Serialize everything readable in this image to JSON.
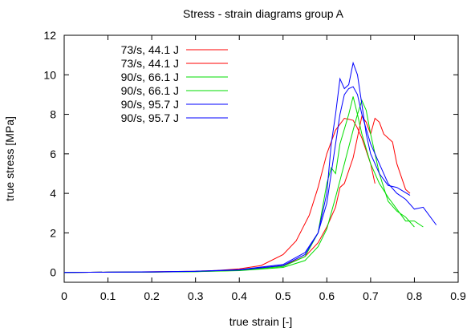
{
  "chart_data": {
    "type": "line",
    "title": "Stress - strain diagrams group A",
    "xlabel": "true strain [-]",
    "ylabel": "true stress [MPa]",
    "xlim": [
      0,
      0.9
    ],
    "ylim": [
      -0.5,
      12
    ],
    "xticks": [
      "0",
      "0.1",
      "0.2",
      "0.3",
      "0.4",
      "0.5",
      "0.6",
      "0.7",
      "0.8",
      "0.9"
    ],
    "yticks": [
      "0",
      "2",
      "4",
      "6",
      "8",
      "10",
      "12"
    ],
    "legend_position": "top-left",
    "grid": false,
    "series": [
      {
        "name": "73/s, 44.1 J",
        "color": "#ff0000",
        "x": [
          0,
          0.1,
          0.2,
          0.3,
          0.35,
          0.4,
          0.45,
          0.5,
          0.53,
          0.56,
          0.58,
          0.6,
          0.62,
          0.64,
          0.66,
          0.67,
          0.68,
          0.7,
          0.71
        ],
        "y": [
          0,
          0.01,
          0.03,
          0.06,
          0.1,
          0.18,
          0.35,
          0.9,
          1.6,
          2.9,
          4.3,
          6.0,
          7.2,
          7.8,
          7.7,
          7.3,
          6.8,
          5.5,
          4.5
        ]
      },
      {
        "name": "73/s, 44.1 J",
        "color": "#ff0000",
        "x": [
          0,
          0.1,
          0.2,
          0.3,
          0.4,
          0.5,
          0.55,
          0.58,
          0.6,
          0.62,
          0.63,
          0.64,
          0.66,
          0.68,
          0.69,
          0.7,
          0.71,
          0.72,
          0.73,
          0.74,
          0.75,
          0.76,
          0.78,
          0.79
        ],
        "y": [
          0,
          0.01,
          0.02,
          0.05,
          0.12,
          0.35,
          0.8,
          1.5,
          2.3,
          3.3,
          4.3,
          4.5,
          5.8,
          7.9,
          7.6,
          7.0,
          7.8,
          7.6,
          7.0,
          6.8,
          6.6,
          5.5,
          4.2,
          4.0
        ]
      },
      {
        "name": "90/s, 66.1 J",
        "color": "#00dd00",
        "x": [
          0,
          0.1,
          0.2,
          0.3,
          0.4,
          0.5,
          0.55,
          0.58,
          0.6,
          0.61,
          0.62,
          0.63,
          0.65,
          0.66,
          0.67,
          0.68,
          0.7,
          0.72,
          0.74,
          0.76,
          0.78,
          0.8,
          0.82
        ],
        "y": [
          0,
          0.01,
          0.02,
          0.04,
          0.1,
          0.3,
          0.8,
          2.0,
          4.5,
          5.3,
          5.0,
          6.5,
          8.0,
          8.9,
          8.0,
          7.0,
          5.5,
          4.5,
          3.8,
          3.2,
          2.6,
          2.6,
          2.3
        ]
      },
      {
        "name": "90/s, 66.1 J",
        "color": "#00dd00",
        "x": [
          0,
          0.1,
          0.2,
          0.3,
          0.4,
          0.5,
          0.55,
          0.58,
          0.6,
          0.62,
          0.64,
          0.66,
          0.67,
          0.68,
          0.69,
          0.7,
          0.72,
          0.74,
          0.76,
          0.78,
          0.8
        ],
        "y": [
          0,
          0.01,
          0.02,
          0.04,
          0.09,
          0.25,
          0.6,
          1.3,
          2.2,
          3.8,
          5.5,
          7.2,
          8.0,
          8.7,
          8.2,
          7.0,
          5.0,
          3.6,
          3.1,
          2.8,
          2.3
        ]
      },
      {
        "name": "90/s, 95.7 J",
        "color": "#0000ff",
        "x": [
          0,
          0.1,
          0.2,
          0.3,
          0.4,
          0.5,
          0.55,
          0.58,
          0.6,
          0.61,
          0.62,
          0.63,
          0.64,
          0.65,
          0.66,
          0.67,
          0.68,
          0.69,
          0.7,
          0.72,
          0.74,
          0.76,
          0.79
        ],
        "y": [
          0,
          0.01,
          0.03,
          0.06,
          0.14,
          0.4,
          1.0,
          2.0,
          4.0,
          6.5,
          8.0,
          9.8,
          9.3,
          9.5,
          10.6,
          10.0,
          8.5,
          7.0,
          6.0,
          5.0,
          4.4,
          4.3,
          3.9
        ]
      },
      {
        "name": "90/s, 95.7 J",
        "color": "#0000ff",
        "x": [
          0,
          0.1,
          0.2,
          0.3,
          0.4,
          0.5,
          0.55,
          0.58,
          0.6,
          0.62,
          0.63,
          0.64,
          0.65,
          0.66,
          0.67,
          0.68,
          0.7,
          0.72,
          0.74,
          0.76,
          0.78,
          0.8,
          0.82,
          0.85
        ],
        "y": [
          0,
          0.01,
          0.02,
          0.05,
          0.12,
          0.35,
          0.9,
          2.0,
          3.5,
          6.5,
          8.0,
          9.0,
          9.3,
          9.4,
          9.0,
          8.0,
          6.5,
          5.5,
          4.5,
          4.0,
          3.7,
          3.2,
          3.3,
          2.4
        ]
      }
    ]
  }
}
